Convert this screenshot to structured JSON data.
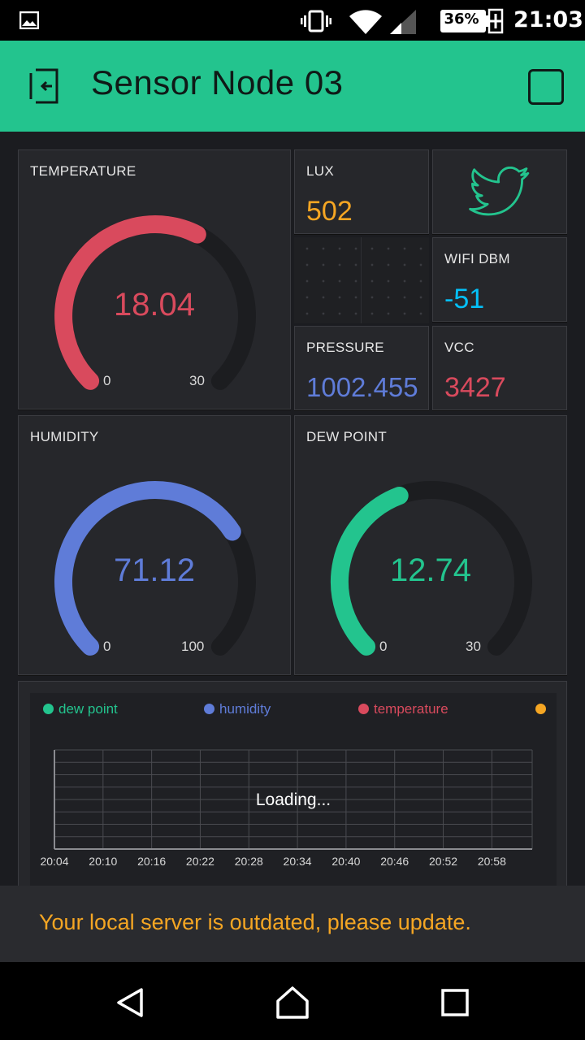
{
  "status_bar": {
    "battery_percent": "36%",
    "time": "21:03",
    "icons": [
      "image-icon",
      "vibrate-icon",
      "wifi-icon",
      "signal-icon",
      "battery-charging-icon"
    ]
  },
  "app_bar": {
    "title": "Sensor Node 03",
    "back_icon": "exit-icon",
    "action_icon": "square-icon"
  },
  "widgets": {
    "temperature": {
      "label": "TEMPERATURE",
      "value": "18.04",
      "min": "0",
      "max": "30",
      "color": "#d94a5d",
      "fraction": 0.601
    },
    "lux": {
      "label": "LUX",
      "value": "502",
      "color": "#f5a623"
    },
    "twitter": {
      "icon": "twitter-icon",
      "color": "#23c48e"
    },
    "wifi": {
      "label": "WIFI DBM",
      "value": "-51",
      "color": "#04c0f8"
    },
    "pressure": {
      "label": "PRESSURE",
      "value": "1002.455",
      "color": "#5f7cd8"
    },
    "vcc": {
      "label": "VCC",
      "value": "3427",
      "color": "#d94a5d"
    },
    "humidity": {
      "label": "HUMIDITY",
      "value": "71.12",
      "min": "0",
      "max": "100",
      "color": "#5f7cd8",
      "fraction": 0.7112
    },
    "dew_point": {
      "label": "DEW POINT",
      "value": "12.74",
      "min": "0",
      "max": "30",
      "color": "#23c48e",
      "fraction": 0.4247
    }
  },
  "chart": {
    "legend": [
      {
        "name": "dew point",
        "color": "#23c48e"
      },
      {
        "name": "humidity",
        "color": "#5f7cd8"
      },
      {
        "name": "temperature",
        "color": "#d94a5d"
      },
      {
        "name": "",
        "color": "#f5a623"
      }
    ],
    "x_ticks": [
      "20:04",
      "20:10",
      "20:16",
      "20:22",
      "20:28",
      "20:34",
      "20:40",
      "20:46",
      "20:52",
      "20:58"
    ],
    "loading_text": "Loading..."
  },
  "snackbar": {
    "message": "Your local server is outdated, please update."
  },
  "nav_bar": {
    "icons": [
      "back-triangle-icon",
      "home-icon",
      "recents-square-icon"
    ]
  }
}
